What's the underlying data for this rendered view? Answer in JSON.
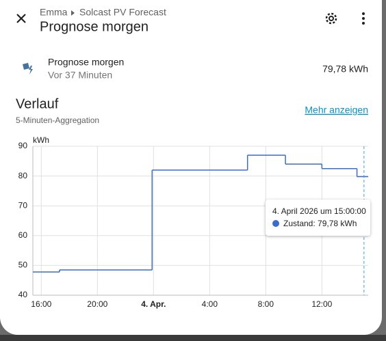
{
  "header": {
    "breadcrumb": [
      "Emma",
      "Solcast PV Forecast"
    ],
    "title": "Prognose morgen"
  },
  "entity": {
    "name": "Prognose morgen",
    "updated": "Vor 37 Minuten",
    "state": "79,78 kWh"
  },
  "history": {
    "title": "Verlauf",
    "subtitle": "5-Minuten-Aggregation",
    "link": "Mehr anzeigen"
  },
  "chart_data": {
    "type": "step",
    "y_label": "kWh",
    "color": "#3b6cc9",
    "x": [
      -8.6,
      -6.7,
      -0.1,
      6.7,
      9.4,
      12,
      14.5
    ],
    "values": [
      47.8,
      48.5,
      82,
      87,
      84,
      82.5,
      79.78
    ],
    "xlim": [
      -8.6,
      15.3
    ],
    "ylim": [
      40,
      90
    ],
    "xticks": [
      {
        "value": -8,
        "label": "16:00"
      },
      {
        "value": -4,
        "label": "20:00"
      },
      {
        "value": 0,
        "label": "4. Apr."
      },
      {
        "value": 4,
        "label": "4:00"
      },
      {
        "value": 8,
        "label": "8:00"
      },
      {
        "value": 12,
        "label": "12:00"
      }
    ],
    "yticks": [
      40,
      50,
      60,
      70,
      80,
      90
    ],
    "grid": true,
    "tooltip": {
      "x": 15,
      "title": "4. April 2026 um 15:00:00",
      "label": "Zustand: 79,78 kWh"
    }
  }
}
